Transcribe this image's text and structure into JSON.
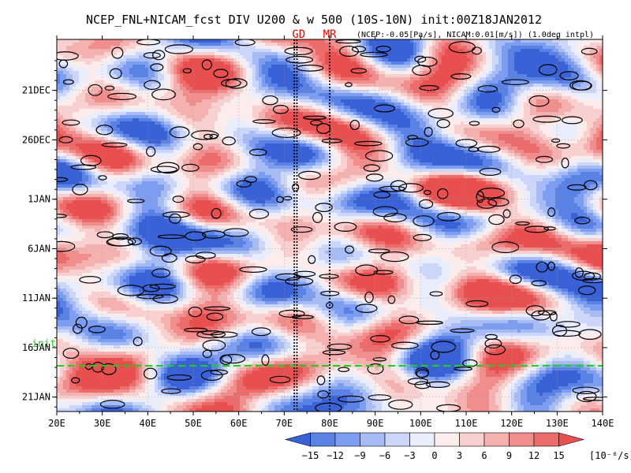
{
  "title": "NCEP_FNL+NICAM_fcst DIV U200 & w 500 (10S-10N) init:00Z18JAN2012",
  "subtitle": "(NCEP:-0.05[Pa/s], NICAM:0.01[m/s]) (1.0deg intpl)",
  "markers": [
    {
      "label": "GD",
      "lon": 72.5,
      "color": "#e60000"
    },
    {
      "label": "MR",
      "lon": 80.0,
      "color": "#e60000"
    }
  ],
  "init_label": "init",
  "colorbar": {
    "ticks": [
      "-15",
      "-12",
      "-9",
      "-6",
      "-3",
      "0",
      "3",
      "6",
      "9",
      "12",
      "15"
    ],
    "units": "[10⁻⁶/s]",
    "colors": [
      "#3a62d6",
      "#5a82e4",
      "#7d9ef0",
      "#a7bcf4",
      "#cbd6f8",
      "#eaeefc",
      "#fdecec",
      "#f9d0d0",
      "#f5b0b0",
      "#f08e8e",
      "#ec6c6c",
      "#e85050"
    ]
  },
  "chart_data": {
    "type": "heatmap",
    "description_fields": {
      "x_axis": "longitude",
      "y_axis": "date (time increases downward)"
    },
    "xlim": [
      20,
      140
    ],
    "xticks": [
      "20E",
      "30E",
      "40E",
      "50E",
      "60E",
      "70E",
      "80E",
      "90E",
      "100E",
      "110E",
      "120E",
      "130E",
      "140E"
    ],
    "ylim_dates": [
      "18DEC2011",
      "25JAN2012"
    ],
    "yticks": [
      {
        "label": "21DEC",
        "day": 3
      },
      {
        "label": "26DEC",
        "day": 8
      },
      {
        "label": "1JAN",
        "day": 14
      },
      {
        "label": "6JAN",
        "day": 19
      },
      {
        "label": "11JAN",
        "day": 24
      },
      {
        "label": "16JAN",
        "day": 29
      },
      {
        "label": "21JAN",
        "day": 34
      }
    ],
    "init_day": 31,
    "total_days": 38,
    "field_levels": [
      -15,
      -12,
      -9,
      -6,
      -3,
      0,
      3,
      6,
      9,
      12,
      15
    ],
    "contour": "w 500 (thin black lines)",
    "grid": true
  }
}
